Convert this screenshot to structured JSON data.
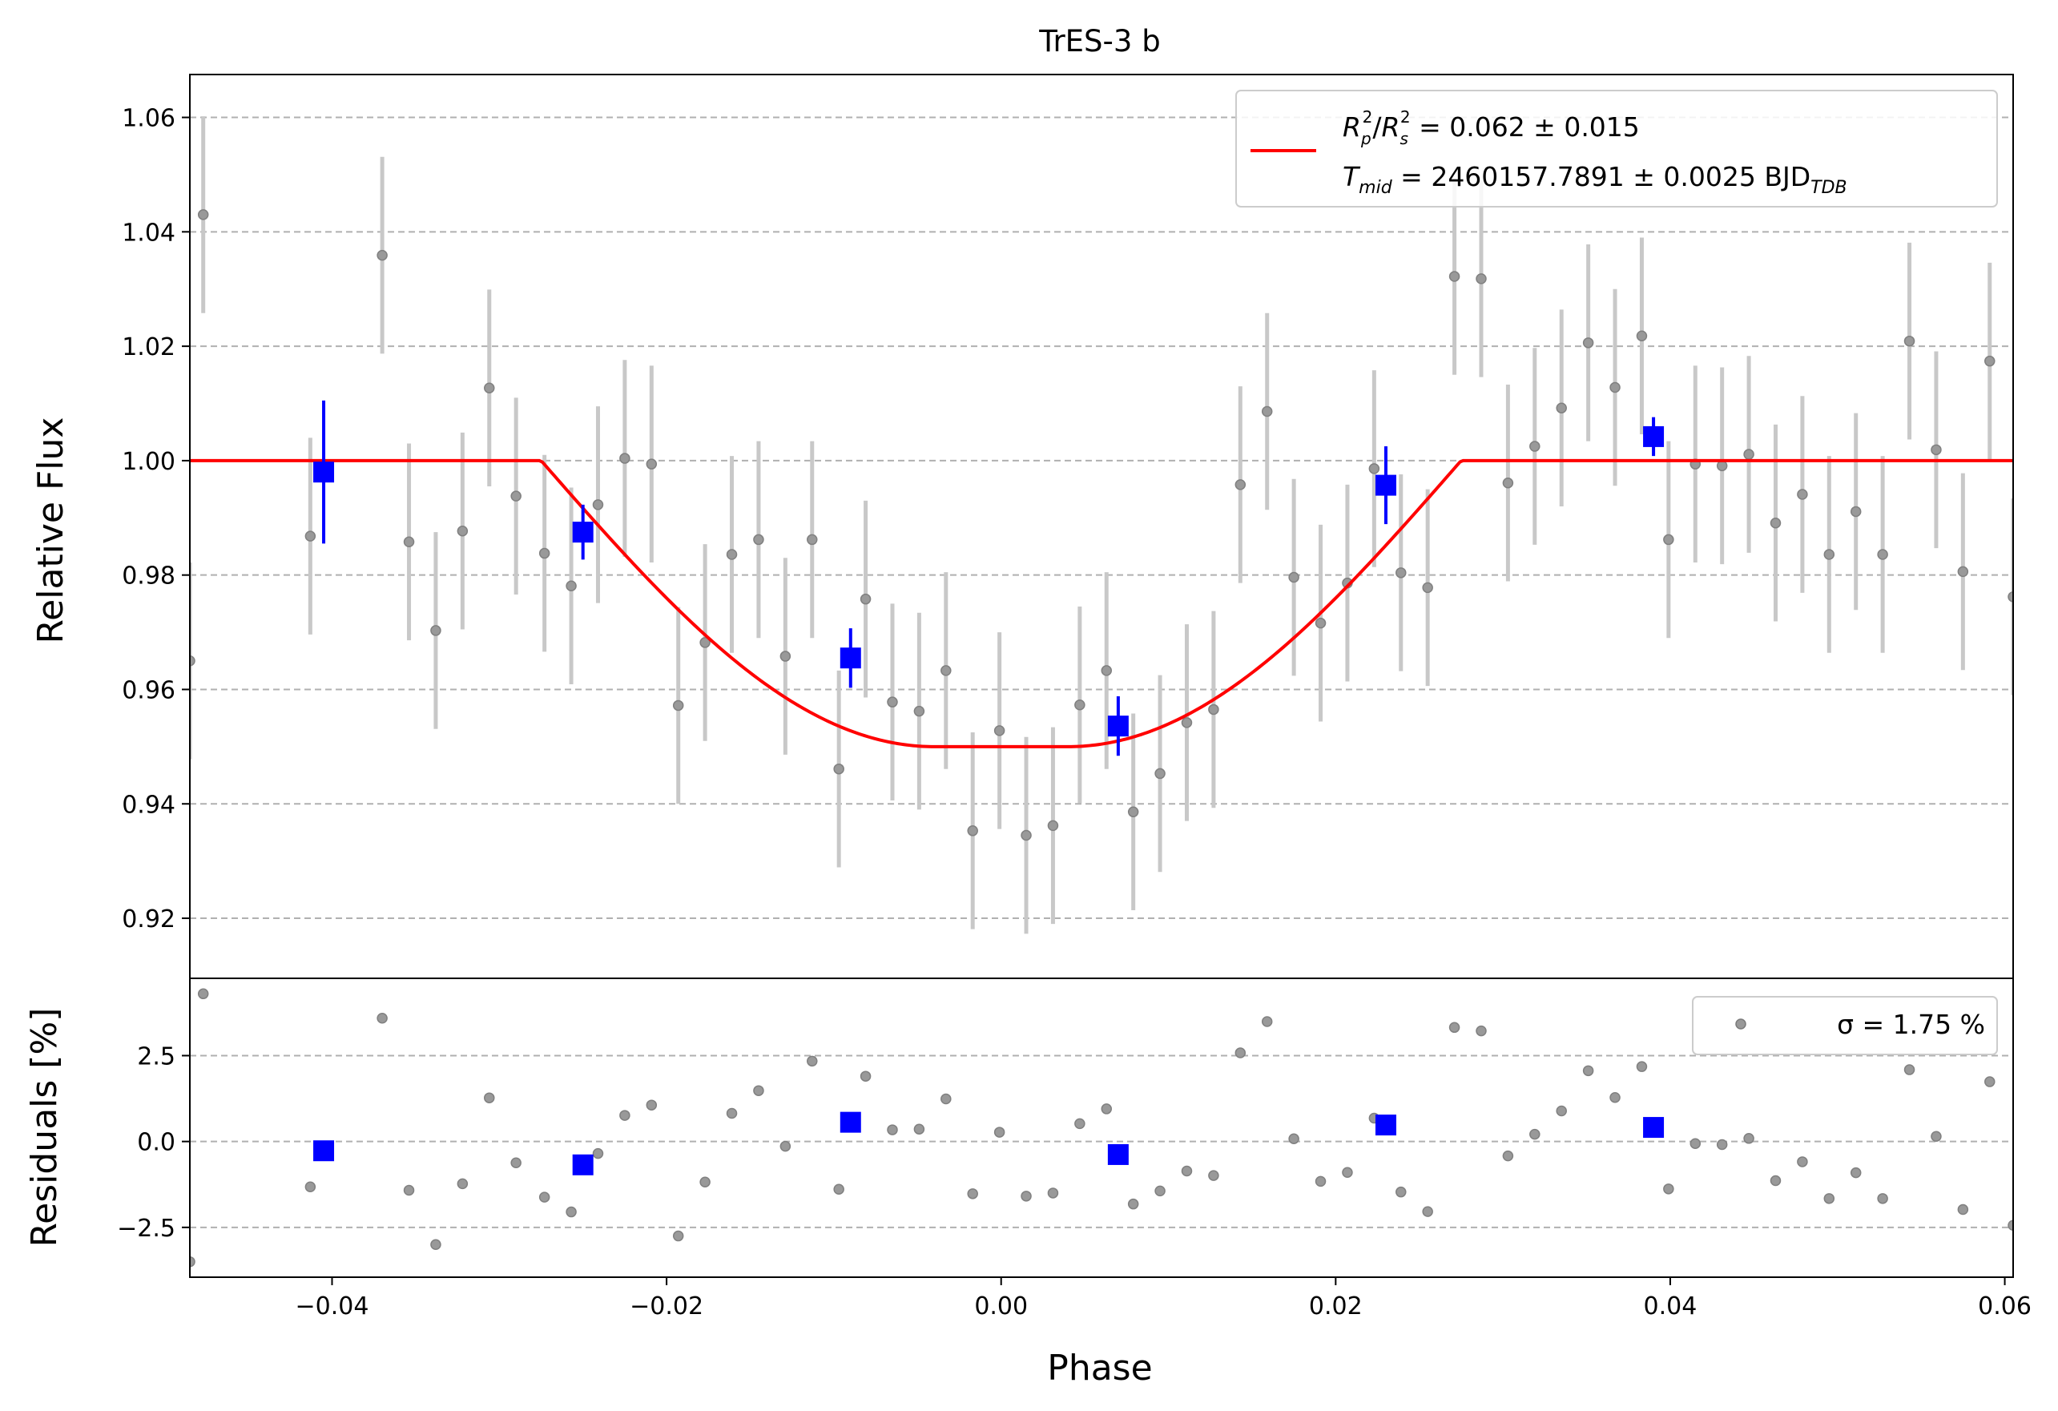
{
  "chart_data": {
    "type": "scatter",
    "title": "TrES-3 b",
    "xlabel": "Phase",
    "ylabel_top": "Relative Flux",
    "ylabel_bottom": "Residuals [%]",
    "xlim": [
      -0.0485,
      0.0605
    ],
    "ylim_top": [
      0.9095,
      1.0675
    ],
    "ylim_bottom": [
      -3.95,
      4.75
    ],
    "grid": "horizontal dashed",
    "x_ticks": [
      "−0.04",
      "−0.02",
      "0.00",
      "0.02",
      "0.04",
      "0.06"
    ],
    "x_tick_values": [
      -0.04,
      -0.02,
      0.0,
      0.02,
      0.04,
      0.06
    ],
    "y_ticks_top": [
      "0.92",
      "0.94",
      "0.96",
      "0.98",
      "1.00",
      "1.02",
      "1.04",
      "1.06"
    ],
    "y_tick_values_top": [
      0.92,
      0.94,
      0.96,
      0.98,
      1.0,
      1.02,
      1.04,
      1.06
    ],
    "y_ticks_bottom": [
      "−2.5",
      "0.0",
      "2.5"
    ],
    "y_tick_values_bottom": [
      -2.5,
      0.0,
      2.5
    ],
    "legend_top": {
      "placement": "top-right",
      "line1": "R²p/R²s = 0.062 ± 0.015",
      "line2": "Tmid = 2460157.7891 ± 0.0025 BJDTDB"
    },
    "legend_bottom": {
      "placement": "top-right",
      "text": "σ = 1.75 %"
    },
    "model": {
      "depth": 0.05,
      "half_duration": 0.0275,
      "ingress": 0.0235,
      "color": "#ff0000"
    },
    "unbinned": {
      "color": "#999999",
      "err": 0.0172,
      "x": [
        -0.0485,
        -0.0477,
        -0.0413,
        -0.037,
        -0.0354,
        -0.0338,
        -0.0322,
        -0.0306,
        -0.029,
        -0.0273,
        -0.0257,
        -0.0241,
        -0.0225,
        -0.0209,
        -0.0193,
        -0.0177,
        -0.0161,
        -0.0145,
        -0.0129,
        -0.0113,
        -0.0097,
        -0.0081,
        -0.0065,
        -0.0049,
        -0.0033,
        -0.0017,
        -0.0001,
        0.0015,
        0.0031,
        0.0047,
        0.0063,
        0.0079,
        0.0095,
        0.0111,
        0.0127,
        0.0143,
        0.0159,
        0.0175,
        0.0191,
        0.0207,
        0.0223,
        0.0239,
        0.0255,
        0.0271,
        0.0287,
        0.0303,
        0.0319,
        0.0335,
        0.0351,
        0.0367,
        0.0383,
        0.0399,
        0.0415,
        0.0431,
        0.0447,
        0.0463,
        0.0479,
        0.0495,
        0.0511,
        0.0527,
        0.0543,
        0.0559,
        0.0575,
        0.0591,
        0.0605
      ],
      "y": [
        0.965,
        1.043,
        0.9868,
        1.0359,
        0.9858,
        0.9703,
        0.9877,
        1.0127,
        0.9938,
        0.9838,
        0.9781,
        0.9923,
        1.0004,
        0.9994,
        0.9572,
        0.9682,
        0.9836,
        0.9862,
        0.9658,
        0.9862,
        0.9461,
        0.9758,
        0.9578,
        0.9562,
        0.9633,
        0.9353,
        0.9528,
        0.9345,
        0.9362,
        0.9573,
        0.9633,
        0.9386,
        0.9453,
        0.9542,
        0.9565,
        0.9958,
        1.0086,
        0.9796,
        0.9716,
        0.9786,
        0.9986,
        0.9804,
        0.9778,
        1.0322,
        1.0318,
        0.9961,
        1.0025,
        1.0092,
        1.0206,
        1.0128,
        1.0218,
        0.9862,
        0.9994,
        0.9991,
        1.0011,
        0.9891,
        0.9941,
        0.9836,
        0.9911,
        0.9836,
        1.0209,
        1.0019,
        0.9806,
        1.0174,
        0.9762
      ],
      "residuals": [
        -3.5,
        4.3,
        -1.32,
        3.59,
        -1.42,
        -3.0,
        -1.23,
        1.27,
        -0.62,
        -1.62,
        -2.05,
        -0.35,
        0.76,
        1.06,
        -2.75,
        -1.18,
        0.82,
        1.48,
        -0.14,
        2.34,
        -1.39,
        1.9,
        0.34,
        0.36,
        1.24,
        -1.52,
        0.27,
        -1.59,
        -1.5,
        0.52,
        0.95,
        -1.82,
        -1.44,
        -0.86,
        -0.99,
        2.58,
        3.49,
        0.08,
        -1.16,
        -0.9,
        0.68,
        -1.47,
        -2.04,
        3.32,
        3.22,
        -0.42,
        0.21,
        0.89,
        2.06,
        1.28,
        2.18,
        -1.38,
        -0.06,
        -0.09,
        0.09,
        -1.14,
        -0.59,
        -1.66,
        -0.91,
        -1.66,
        2.09,
        0.15,
        -1.98,
        1.74,
        -2.44
      ]
    },
    "binned": {
      "color": "#0000ff",
      "x": [
        -0.0405,
        -0.025,
        -0.009,
        0.007,
        0.023,
        0.039
      ],
      "y": [
        0.998,
        0.9875,
        0.9655,
        0.9536,
        0.9957,
        1.0042
      ],
      "err": [
        0.0125,
        0.0048,
        0.0052,
        0.0052,
        0.0068,
        0.0034
      ],
      "residuals": [
        -0.27,
        -0.68,
        0.56,
        -0.38,
        0.48,
        0.41
      ]
    }
  }
}
